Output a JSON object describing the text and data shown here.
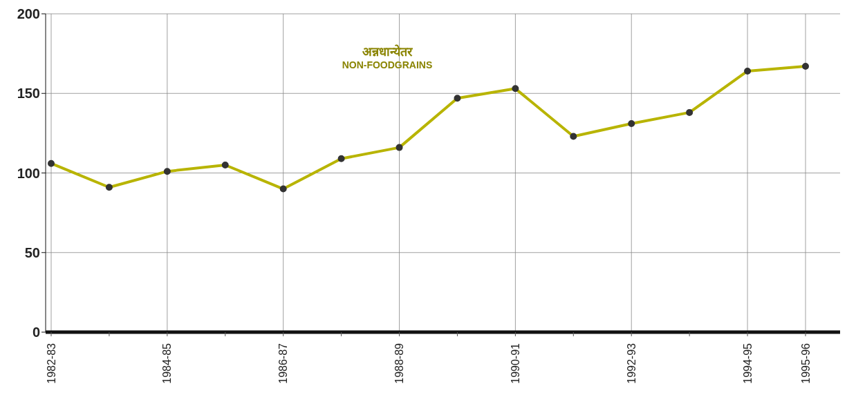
{
  "chart_data": {
    "type": "line",
    "title": "अन्नधान्येतर",
    "subtitle": "NON-FOODGRAINS",
    "categories": [
      "1982-83",
      null,
      "1984-85",
      null,
      "1986-87",
      null,
      "1988-89",
      null,
      "1990-91",
      null,
      "1992-93",
      null,
      "1994-95",
      "1995-96"
    ],
    "series": [
      {
        "color": "#b8b400",
        "values": [
          106,
          91,
          101,
          105,
          90,
          109,
          116,
          147,
          153,
          123,
          131,
          138,
          164,
          167
        ]
      }
    ],
    "ylim": [
      0,
      200
    ],
    "yticks": [
      0,
      50,
      100,
      150,
      200
    ],
    "grid": true,
    "marker": "circle",
    "line_style": "solid"
  }
}
